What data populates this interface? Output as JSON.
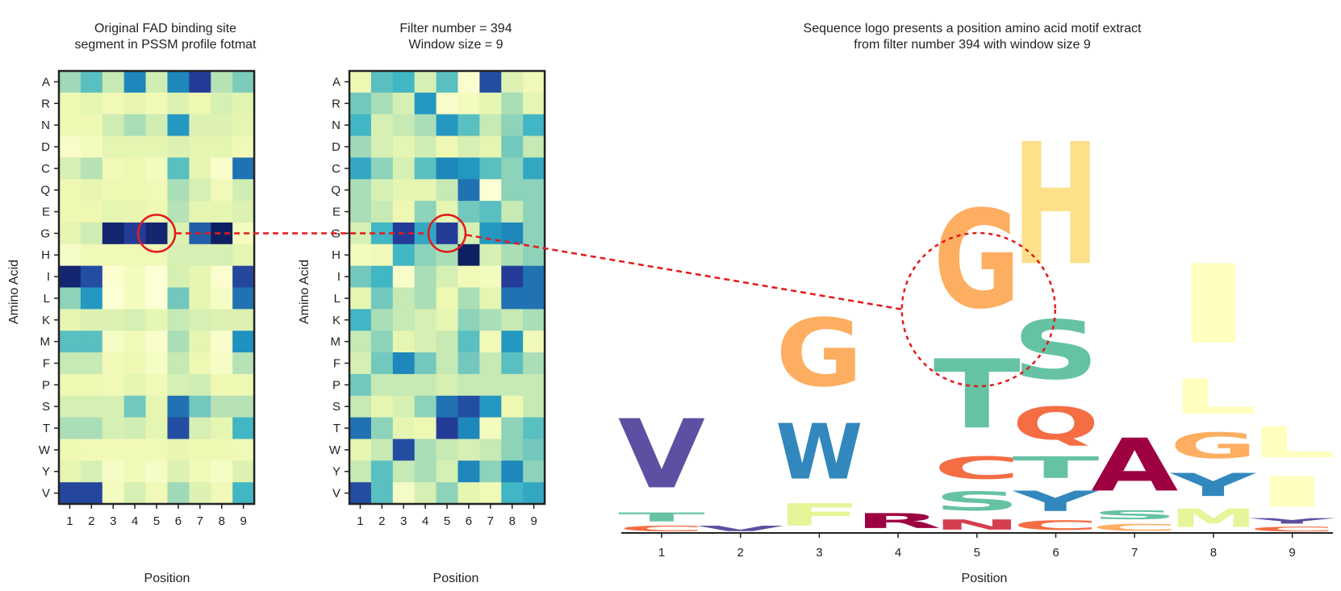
{
  "panels": {
    "pssm": {
      "title_line1": "Original FAD binding site",
      "title_line2": "segment in PSSM profile fotmat",
      "xlabel": "Position",
      "ylabel": "Amino Acid"
    },
    "filter": {
      "title_line1": "Filter number = 394",
      "title_line2": "Window size = 9",
      "xlabel": "Position",
      "ylabel": "Amino Acid"
    },
    "logo": {
      "title_line1": "Sequence logo presents a position amino acid motif extract",
      "title_line2": "from filter number 394 with window size 9",
      "xlabel": "Position"
    }
  },
  "highlight_color": "#e31a1c",
  "colormap": [
    "#ffffd9",
    "#edf8b1",
    "#c7e9b4",
    "#7fcdbb",
    "#41b6c4",
    "#1d91c0",
    "#225ea8",
    "#253494",
    "#081d58"
  ],
  "chart_data": [
    {
      "type": "heatmap",
      "name": "pssm",
      "title": "Original FAD binding site segment in PSSM profile fotmat",
      "xlabel": "Position",
      "ylabel": "Amino Acid",
      "x": [
        "1",
        "2",
        "3",
        "4",
        "5",
        "6",
        "7",
        "8",
        "9"
      ],
      "y": [
        "A",
        "R",
        "N",
        "D",
        "C",
        "Q",
        "E",
        "G",
        "H",
        "I",
        "L",
        "K",
        "M",
        "F",
        "P",
        "S",
        "T",
        "W",
        "Y",
        "V"
      ],
      "values": [
        [
          0.32,
          0.45,
          0.25,
          0.65,
          0.22,
          0.65,
          0.85,
          0.28,
          0.38
        ],
        [
          0.12,
          0.15,
          0.1,
          0.14,
          0.1,
          0.18,
          0.12,
          0.2,
          0.16
        ],
        [
          0.12,
          0.12,
          0.22,
          0.3,
          0.22,
          0.6,
          0.18,
          0.18,
          0.15
        ],
        [
          0.05,
          0.08,
          0.15,
          0.15,
          0.15,
          0.18,
          0.15,
          0.15,
          0.1
        ],
        [
          0.2,
          0.28,
          0.1,
          0.12,
          0.08,
          0.45,
          0.15,
          0.04,
          0.7
        ],
        [
          0.12,
          0.14,
          0.12,
          0.12,
          0.1,
          0.3,
          0.2,
          0.1,
          0.22
        ],
        [
          0.12,
          0.12,
          0.15,
          0.14,
          0.12,
          0.28,
          0.15,
          0.15,
          0.18
        ],
        [
          0.15,
          0.22,
          0.95,
          0.85,
          0.95,
          0.18,
          0.75,
          0.98,
          0.08
        ],
        [
          0.06,
          0.1,
          0.1,
          0.1,
          0.1,
          0.2,
          0.2,
          0.2,
          0.15
        ],
        [
          0.95,
          0.8,
          0.03,
          0.08,
          0.02,
          0.2,
          0.15,
          0.03,
          0.82
        ],
        [
          0.35,
          0.6,
          0.02,
          0.08,
          0.02,
          0.4,
          0.15,
          0.06,
          0.7
        ],
        [
          0.15,
          0.18,
          0.18,
          0.2,
          0.15,
          0.25,
          0.2,
          0.18,
          0.18
        ],
        [
          0.45,
          0.45,
          0.06,
          0.1,
          0.04,
          0.3,
          0.15,
          0.04,
          0.62
        ],
        [
          0.25,
          0.25,
          0.1,
          0.12,
          0.06,
          0.25,
          0.12,
          0.06,
          0.28
        ],
        [
          0.12,
          0.12,
          0.1,
          0.15,
          0.1,
          0.2,
          0.22,
          0.12,
          0.12
        ],
        [
          0.2,
          0.2,
          0.2,
          0.4,
          0.15,
          0.7,
          0.4,
          0.28,
          0.28
        ],
        [
          0.3,
          0.3,
          0.2,
          0.22,
          0.15,
          0.8,
          0.2,
          0.15,
          0.5
        ],
        [
          0.12,
          0.1,
          0.1,
          0.1,
          0.1,
          0.14,
          0.12,
          0.12,
          0.1
        ],
        [
          0.15,
          0.2,
          0.06,
          0.1,
          0.06,
          0.18,
          0.1,
          0.06,
          0.18
        ],
        [
          0.82,
          0.82,
          0.08,
          0.2,
          0.1,
          0.32,
          0.18,
          0.1,
          0.5
        ]
      ]
    },
    {
      "type": "heatmap",
      "name": "filter",
      "title": "Filter number = 394 Window size = 9",
      "xlabel": "Position",
      "ylabel": "Amino Acid",
      "x": [
        "1",
        "2",
        "3",
        "4",
        "5",
        "6",
        "7",
        "8",
        "9"
      ],
      "y": [
        "A",
        "R",
        "N",
        "D",
        "C",
        "Q",
        "E",
        "G",
        "H",
        "I",
        "L",
        "K",
        "M",
        "F",
        "P",
        "S",
        "T",
        "W",
        "Y",
        "V"
      ],
      "values": [
        [
          0.12,
          0.45,
          0.5,
          0.2,
          0.45,
          0.03,
          0.8,
          0.18,
          0.1
        ],
        [
          0.4,
          0.3,
          0.2,
          0.6,
          0.05,
          0.08,
          0.15,
          0.3,
          0.15
        ],
        [
          0.5,
          0.2,
          0.25,
          0.3,
          0.6,
          0.45,
          0.25,
          0.35,
          0.5
        ],
        [
          0.32,
          0.2,
          0.15,
          0.22,
          0.12,
          0.2,
          0.15,
          0.4,
          0.25
        ],
        [
          0.55,
          0.35,
          0.2,
          0.45,
          0.65,
          0.6,
          0.45,
          0.35,
          0.55
        ],
        [
          0.3,
          0.2,
          0.15,
          0.15,
          0.25,
          0.7,
          0.02,
          0.35,
          0.35
        ],
        [
          0.3,
          0.25,
          0.12,
          0.35,
          0.15,
          0.4,
          0.45,
          0.25,
          0.35
        ],
        [
          0.2,
          0.5,
          0.85,
          0.55,
          0.85,
          0.2,
          0.6,
          0.65,
          0.35
        ],
        [
          0.08,
          0.1,
          0.5,
          0.35,
          0.3,
          0.98,
          0.2,
          0.3,
          0.35
        ],
        [
          0.4,
          0.5,
          0.05,
          0.3,
          0.2,
          0.1,
          0.08,
          0.85,
          0.7
        ],
        [
          0.15,
          0.4,
          0.25,
          0.3,
          0.12,
          0.3,
          0.15,
          0.7,
          0.7
        ],
        [
          0.5,
          0.3,
          0.25,
          0.2,
          0.15,
          0.35,
          0.3,
          0.25,
          0.3
        ],
        [
          0.25,
          0.35,
          0.15,
          0.2,
          0.25,
          0.45,
          0.1,
          0.6,
          0.1
        ],
        [
          0.2,
          0.4,
          0.65,
          0.4,
          0.25,
          0.4,
          0.25,
          0.45,
          0.3
        ],
        [
          0.4,
          0.25,
          0.25,
          0.25,
          0.2,
          0.25,
          0.25,
          0.25,
          0.25
        ],
        [
          0.25,
          0.15,
          0.2,
          0.35,
          0.7,
          0.8,
          0.6,
          0.12,
          0.25
        ],
        [
          0.7,
          0.35,
          0.15,
          0.12,
          0.85,
          0.65,
          0.08,
          0.35,
          0.45
        ],
        [
          0.15,
          0.25,
          0.8,
          0.3,
          0.25,
          0.2,
          0.25,
          0.35,
          0.4
        ],
        [
          0.25,
          0.45,
          0.25,
          0.3,
          0.2,
          0.65,
          0.35,
          0.65,
          0.35
        ],
        [
          0.8,
          0.45,
          0.06,
          0.2,
          0.35,
          0.15,
          0.1,
          0.5,
          0.55
        ]
      ]
    },
    {
      "type": "bar",
      "name": "sequence-logo",
      "title": "Sequence logo presents a position amino acid motif extract from filter number 394 with window size 9",
      "xlabel": "Position",
      "categories": [
        "1",
        "2",
        "3",
        "4",
        "5",
        "6",
        "7",
        "8",
        "9"
      ],
      "stacks": [
        [
          {
            "letter": "C",
            "value": 0.08,
            "color": "#f46d43"
          },
          {
            "letter": "T",
            "value": 0.13,
            "color": "#66c2a5"
          },
          {
            "letter": "V",
            "value": 1.02,
            "color": "#5e4fa2"
          }
        ],
        [
          {
            "letter": "V",
            "value": 0.08,
            "color": "#5e4fa2"
          }
        ],
        [
          {
            "letter": "F",
            "value": 0.33,
            "color": "#e6f598"
          },
          {
            "letter": "W",
            "value": 0.82,
            "color": "#3288bd"
          },
          {
            "letter": "G",
            "value": 1.0,
            "color": "#fdae61"
          }
        ],
        [
          {
            "letter": "R",
            "value": 0.22,
            "color": "#9e0142"
          }
        ],
        [
          {
            "letter": "N",
            "value": 0.15,
            "color": "#d53e4f"
          },
          {
            "letter": "S",
            "value": 0.28,
            "color": "#66c2a5"
          },
          {
            "letter": "C",
            "value": 0.33,
            "color": "#f46d43"
          },
          {
            "letter": "T",
            "value": 1.02,
            "color": "#66c2a5"
          },
          {
            "letter": "G",
            "value": 1.45,
            "color": "#fdae61"
          }
        ],
        [
          {
            "letter": "C",
            "value": 0.14,
            "color": "#f46d43"
          },
          {
            "letter": "Y",
            "value": 0.3,
            "color": "#3288bd"
          },
          {
            "letter": "T",
            "value": 0.32,
            "color": "#66c2a5"
          },
          {
            "letter": "Q",
            "value": 0.48,
            "color": "#f46d43"
          },
          {
            "letter": "S",
            "value": 0.87,
            "color": "#66c2a5"
          },
          {
            "letter": "H",
            "value": 1.8,
            "color": "#fee08b"
          }
        ],
        [
          {
            "letter": "C",
            "value": 0.1,
            "color": "#fdae61"
          },
          {
            "letter": "S",
            "value": 0.13,
            "color": "#66c2a5"
          },
          {
            "letter": "A",
            "value": 0.78,
            "color": "#9e0142"
          }
        ],
        [
          {
            "letter": "M",
            "value": 0.27,
            "color": "#e6f598"
          },
          {
            "letter": "Y",
            "value": 0.34,
            "color": "#3288bd"
          },
          {
            "letter": "G",
            "value": 0.38,
            "color": "#fdae61"
          },
          {
            "letter": "L",
            "value": 0.52,
            "color": "#ffffbf"
          },
          {
            "letter": "I",
            "value": 1.17,
            "color": "#ffffbf"
          }
        ],
        [
          {
            "letter": "C",
            "value": 0.07,
            "color": "#f46d43"
          },
          {
            "letter": "Y",
            "value": 0.08,
            "color": "#5e4fa2"
          },
          {
            "letter": "I",
            "value": 0.45,
            "color": "#ffffbf"
          },
          {
            "letter": "L",
            "value": 0.46,
            "color": "#ffffbf"
          }
        ]
      ]
    }
  ]
}
